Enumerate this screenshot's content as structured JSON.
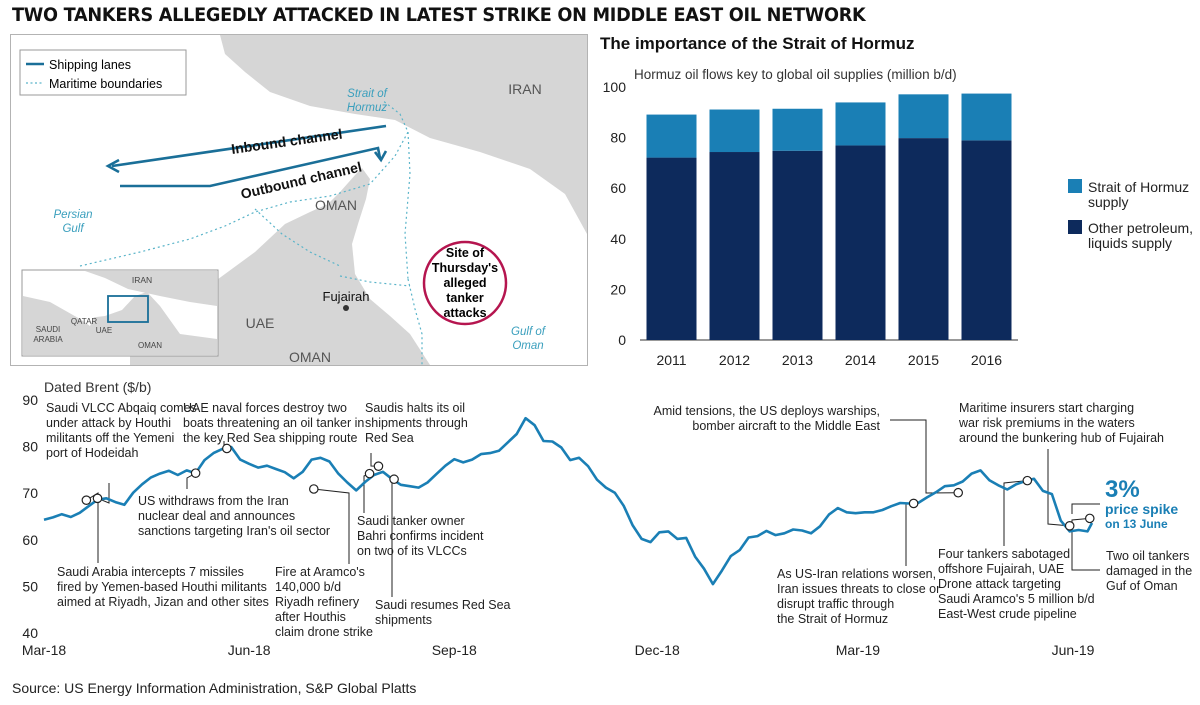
{
  "headline": "TWO TANKERS ALLEGEDLY ATTACKED IN LATEST STRIKE ON MIDDLE EAST OIL NETWORK",
  "source": "Source: US Energy Information Administration, S&P Global Platts",
  "colors": {
    "hormuz": "#1a7fb5",
    "other": "#0d2a5c",
    "line": "#1a7fb5",
    "accent": "#b5154f",
    "land": "#d6d6d6",
    "sea": "#ffffff"
  },
  "map": {
    "legend": {
      "shipping": "Shipping lanes",
      "maritime": "Maritime boundaries"
    },
    "labels": {
      "iran": "IRAN",
      "strait": [
        "Strait of",
        "Hormuz"
      ],
      "inbound": "Inbound channel",
      "outbound": "Outbound channel",
      "persian": [
        "Persian",
        "Gulf"
      ],
      "oman_north": "OMAN",
      "uae": "UAE",
      "oman_south": "OMAN",
      "fujairah": "Fujairah",
      "gulf_oman": [
        "Gulf of",
        "Oman"
      ],
      "site": [
        "Site of",
        "Thursday's",
        "alleged",
        "tanker",
        "attacks"
      ]
    },
    "inset": {
      "iran": "IRAN",
      "qatar": "QATAR",
      "uae": "UAE",
      "saudi": [
        "SAUDI",
        "ARABIA"
      ],
      "oman": "OMAN"
    }
  },
  "chart_data": [
    {
      "type": "bar",
      "title": "The importance of the Strait of Hormuz",
      "subtitle": "Hormuz oil flows key to global oil supplies (million b/d)",
      "categories": [
        "2011",
        "2012",
        "2013",
        "2014",
        "2015",
        "2016"
      ],
      "series": [
        {
          "name": "Other petroleum, liquids supply",
          "values": [
            72.1,
            74.3,
            74.8,
            76.9,
            79.8,
            78.9
          ]
        },
        {
          "name": "Strait of Hormuz supply",
          "values": [
            17.0,
            16.8,
            16.6,
            17.0,
            17.3,
            18.5
          ]
        }
      ],
      "legend_labels": [
        [
          "Strait of Hormuz",
          "supply"
        ],
        [
          "Other petroleum,",
          "liquids supply"
        ]
      ],
      "stacked": true,
      "ylim": [
        0,
        100
      ],
      "yticks": [
        0,
        20,
        40,
        60,
        80,
        100
      ],
      "legend_position": "right",
      "grid": false
    },
    {
      "type": "line",
      "title": "Dated Brent ($/b)",
      "x_range": [
        "2018-03-01",
        "2019-06-14"
      ],
      "ylim": [
        40,
        90
      ],
      "yticks": [
        40,
        50,
        60,
        70,
        80,
        90
      ],
      "xticks": [
        "Mar-18",
        "Jun-18",
        "Sep-18",
        "Dec-18",
        "Mar-19",
        "Jun-19"
      ],
      "grid": false,
      "series": [
        {
          "name": "Dated Brent",
          "points": [
            [
              "2018-03-01",
              64.3
            ],
            [
              "2018-03-05",
              64.8
            ],
            [
              "2018-03-09",
              65.5
            ],
            [
              "2018-03-13",
              64.9
            ],
            [
              "2018-03-17",
              65.8
            ],
            [
              "2018-03-21",
              67.2
            ],
            [
              "2018-03-25",
              68.6
            ],
            [
              "2018-03-29",
              68.9
            ],
            [
              "2018-04-02",
              68.1
            ],
            [
              "2018-04-06",
              67.5
            ],
            [
              "2018-04-10",
              70.1
            ],
            [
              "2018-04-14",
              71.9
            ],
            [
              "2018-04-18",
              73.4
            ],
            [
              "2018-04-22",
              74.2
            ],
            [
              "2018-04-26",
              74.8
            ],
            [
              "2018-04-30",
              73.9
            ],
            [
              "2018-05-04",
              74.9
            ],
            [
              "2018-05-08",
              74.3
            ],
            [
              "2018-05-12",
              77.1
            ],
            [
              "2018-05-16",
              78.6
            ],
            [
              "2018-05-20",
              79.5
            ],
            [
              "2018-05-24",
              79.9
            ],
            [
              "2018-05-28",
              77.2
            ],
            [
              "2018-06-01",
              76.3
            ],
            [
              "2018-06-05",
              75.5
            ],
            [
              "2018-06-09",
              75.9
            ],
            [
              "2018-06-13",
              75.2
            ],
            [
              "2018-06-17",
              74.5
            ],
            [
              "2018-06-21",
              73.2
            ],
            [
              "2018-06-25",
              74.6
            ],
            [
              "2018-06-29",
              77.2
            ],
            [
              "2018-07-03",
              77.6
            ],
            [
              "2018-07-07",
              76.8
            ],
            [
              "2018-07-11",
              74.2
            ],
            [
              "2018-07-15",
              72.3
            ],
            [
              "2018-07-19",
              70.6
            ],
            [
              "2018-07-23",
              72.4
            ],
            [
              "2018-07-27",
              73.9
            ],
            [
              "2018-07-31",
              74.6
            ],
            [
              "2018-08-04",
              73.1
            ],
            [
              "2018-08-08",
              71.8
            ],
            [
              "2018-08-12",
              71.5
            ],
            [
              "2018-08-16",
              71.2
            ],
            [
              "2018-08-20",
              72.3
            ],
            [
              "2018-08-24",
              74.1
            ],
            [
              "2018-08-28",
              75.9
            ],
            [
              "2018-09-01",
              77.3
            ],
            [
              "2018-09-05",
              76.6
            ],
            [
              "2018-09-09",
              77.2
            ],
            [
              "2018-09-13",
              78.4
            ],
            [
              "2018-09-17",
              78.6
            ],
            [
              "2018-09-21",
              79.1
            ],
            [
              "2018-09-25",
              80.9
            ],
            [
              "2018-09-29",
              82.7
            ],
            [
              "2018-10-03",
              86.1
            ],
            [
              "2018-10-07",
              84.6
            ],
            [
              "2018-10-11",
              81.2
            ],
            [
              "2018-10-15",
              81.1
            ],
            [
              "2018-10-19",
              79.8
            ],
            [
              "2018-10-23",
              77.1
            ],
            [
              "2018-10-27",
              77.6
            ],
            [
              "2018-10-31",
              75.8
            ],
            [
              "2018-11-04",
              72.9
            ],
            [
              "2018-11-08",
              71.2
            ],
            [
              "2018-11-12",
              70.1
            ],
            [
              "2018-11-16",
              67.3
            ],
            [
              "2018-11-20",
              63.1
            ],
            [
              "2018-11-24",
              60.2
            ],
            [
              "2018-11-28",
              59.5
            ],
            [
              "2018-12-02",
              61.6
            ],
            [
              "2018-12-06",
              61.8
            ],
            [
              "2018-12-10",
              60.2
            ],
            [
              "2018-12-14",
              60.4
            ],
            [
              "2018-12-18",
              56.4
            ],
            [
              "2018-12-22",
              53.8
            ],
            [
              "2018-12-26",
              50.5
            ],
            [
              "2018-12-30",
              53.4
            ],
            [
              "2019-01-03",
              56.5
            ],
            [
              "2019-01-07",
              57.8
            ],
            [
              "2019-01-11",
              60.5
            ],
            [
              "2019-01-15",
              60.8
            ],
            [
              "2019-01-19",
              61.9
            ],
            [
              "2019-01-23",
              61.0
            ],
            [
              "2019-01-27",
              61.4
            ],
            [
              "2019-01-31",
              62.2
            ],
            [
              "2019-02-04",
              62.0
            ],
            [
              "2019-02-08",
              61.4
            ],
            [
              "2019-02-12",
              62.9
            ],
            [
              "2019-02-16",
              65.4
            ],
            [
              "2019-02-20",
              66.8
            ],
            [
              "2019-02-24",
              65.9
            ],
            [
              "2019-02-28",
              65.7
            ],
            [
              "2019-03-04",
              65.9
            ],
            [
              "2019-03-08",
              65.9
            ],
            [
              "2019-03-12",
              66.4
            ],
            [
              "2019-03-16",
              67.2
            ],
            [
              "2019-03-20",
              67.9
            ],
            [
              "2019-03-24",
              67.8
            ],
            [
              "2019-03-28",
              67.9
            ],
            [
              "2019-04-01",
              69.1
            ],
            [
              "2019-04-05",
              70.2
            ],
            [
              "2019-04-09",
              71.5
            ],
            [
              "2019-04-13",
              71.7
            ],
            [
              "2019-04-17",
              72.5
            ],
            [
              "2019-04-21",
              74.2
            ],
            [
              "2019-04-25",
              74.9
            ],
            [
              "2019-04-29",
              72.8
            ],
            [
              "2019-05-03",
              71.7
            ],
            [
              "2019-05-07",
              70.8
            ],
            [
              "2019-05-11",
              71.9
            ],
            [
              "2019-05-15",
              72.6
            ],
            [
              "2019-05-19",
              73.1
            ],
            [
              "2019-05-23",
              70.5
            ],
            [
              "2019-05-27",
              69.8
            ],
            [
              "2019-05-31",
              64.1
            ],
            [
              "2019-06-04",
              61.8
            ],
            [
              "2019-06-08",
              62.1
            ],
            [
              "2019-06-12",
              61.8
            ],
            [
              "2019-06-14",
              63.6
            ]
          ]
        }
      ],
      "callout": {
        "value": "3%",
        "lines": [
          "price spike",
          "on 13 June"
        ]
      },
      "annotations": [
        {
          "date": "2018-03-25",
          "value": 68.9,
          "lines": [
            "Saudi VLCC Abqaiq comes",
            "under attack by Houthi",
            "militants off the Yemeni",
            "port of Hodeidah"
          ]
        },
        {
          "date": "2018-03-20",
          "value": 68.5,
          "lines": [
            "Saudi Arabia intercepts 7 missiles",
            "fired by Yemen-based Houthi militants",
            "aimed at Riyadh, Jizan and other sites"
          ]
        },
        {
          "date": "2018-05-08",
          "value": 74.3,
          "lines": [
            "US withdraws from the Iran",
            "nuclear deal and announces",
            "sanctions targeting Iran's oil sector"
          ]
        },
        {
          "date": "2018-05-22",
          "value": 79.6,
          "lines": [
            "UAE naval forces destroy two",
            "boats threatening an oil tanker in",
            "the key Red Sea shipping route"
          ]
        },
        {
          "date": "2018-06-30",
          "value": 70.9,
          "lines": [
            "Fire at Aramco's",
            "140,000 b/d",
            "Riyadh refinery",
            "after Houthis",
            "claim drone strike"
          ]
        },
        {
          "date": "2018-07-25",
          "value": 74.2,
          "lines": [
            "Saudi tanker owner",
            "Bahri confirms incident",
            "on two of its VLCCs"
          ]
        },
        {
          "date": "2018-07-29",
          "value": 75.8,
          "lines": [
            "Saudis halts its oil",
            "shipments through",
            "Red Sea"
          ]
        },
        {
          "date": "2018-08-05",
          "value": 73.0,
          "lines": [
            "Saudi resumes Red Sea",
            "shipments"
          ]
        },
        {
          "date": "2019-04-15",
          "value": 70.1,
          "lines": [
            "Amid tensions, the US deploys warships,",
            "bomber aircraft to the Middle East"
          ]
        },
        {
          "date": "2019-03-26",
          "value": 67.8,
          "lines": [
            "As US-Iran relations worsen,",
            "Iran issues threats to close or",
            "disrupt traffic through",
            "the Strait of Hormuz"
          ]
        },
        {
          "date": "2019-05-16",
          "value": 72.7,
          "lines": [
            "Four tankers sabotaged",
            "offshore Fujairah, UAE",
            "Drone attack targeting",
            "Saudi Aramco's 5 million b/d",
            "East-West crude pipeline"
          ]
        },
        {
          "date": "2019-06-04",
          "value": 63.0,
          "lines": [
            "Maritime insurers start charging",
            "war risk premiums in the waters",
            "around the bunkering hub of Fujairah"
          ]
        },
        {
          "date": "2019-06-13",
          "value": 64.6,
          "lines": [
            "Two oil tankers",
            "damaged in the",
            "Guf of Oman"
          ]
        }
      ]
    }
  ]
}
